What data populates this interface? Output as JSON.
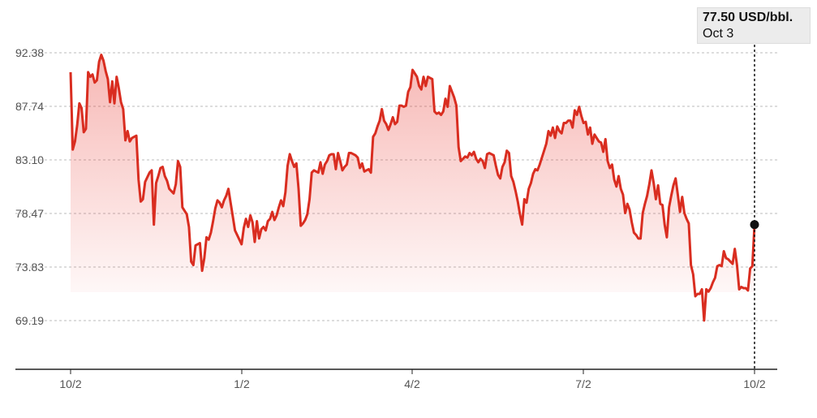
{
  "chart_data": {
    "type": "line",
    "title": "",
    "xlabel": "",
    "ylabel": "",
    "x_ticks": [
      "10/2",
      "1/2",
      "4/2",
      "7/2",
      "10/2"
    ],
    "y_ticks": [
      "92.38",
      "87.74",
      "83.10",
      "78.47",
      "73.83",
      "69.19"
    ],
    "ylim": [
      64.55,
      94.5
    ],
    "grid": "horizontal dashed",
    "series": [
      {
        "name": "",
        "color": "#d92d20",
        "values": [
          90.7,
          84.0,
          84.7,
          86.1,
          88.0,
          87.6,
          85.5,
          85.8,
          90.7,
          90.3,
          90.5,
          89.8,
          90.0,
          91.6,
          92.2,
          91.7,
          90.8,
          90.1,
          88.1,
          89.9,
          88.0,
          90.3,
          89.3,
          88.1,
          87.5,
          84.8,
          85.6,
          84.7,
          85.0,
          85.1,
          85.2,
          81.4,
          79.5,
          79.7,
          81.2,
          81.6,
          82.0,
          82.2,
          77.5,
          81.1,
          81.7,
          82.4,
          82.5,
          81.7,
          81.3,
          80.6,
          80.4,
          80.2,
          81.0,
          83.0,
          82.5,
          79.0,
          78.7,
          78.4,
          77.3,
          74.3,
          74.0,
          75.7,
          75.8,
          75.9,
          73.5,
          74.6,
          76.4,
          76.2,
          76.8,
          77.8,
          78.9,
          79.6,
          79.4,
          79.0,
          79.6,
          80.0,
          80.6,
          79.4,
          78.2,
          77.0,
          76.6,
          76.2,
          75.8,
          77.2,
          78.0,
          77.3,
          78.3,
          77.7,
          76.0,
          77.8,
          76.3,
          77.1,
          77.3,
          77.0,
          77.8,
          78.0,
          78.6,
          77.9,
          78.3,
          79.0,
          79.6,
          79.1,
          80.3,
          82.6,
          83.6,
          83.0,
          82.5,
          82.8,
          80.6,
          77.4,
          77.6,
          77.9,
          78.4,
          79.7,
          82.0,
          82.2,
          82.1,
          82.0,
          82.9,
          81.9,
          82.7,
          83.0,
          83.5,
          83.6,
          83.6,
          82.3,
          83.7,
          83.0,
          82.2,
          82.5,
          82.7,
          83.7,
          83.7,
          83.6,
          83.5,
          83.3,
          82.4,
          82.8,
          82.1,
          82.2,
          82.3,
          82.0,
          85.1,
          85.4,
          86.0,
          86.5,
          87.5,
          86.5,
          86.2,
          85.7,
          86.2,
          86.8,
          86.2,
          86.4,
          87.8,
          87.8,
          87.7,
          87.8,
          89.0,
          89.4,
          90.9,
          90.6,
          90.3,
          89.5,
          89.2,
          90.3,
          89.5,
          90.3,
          90.2,
          90.1,
          87.3,
          87.1,
          87.2,
          87.0,
          87.3,
          88.4,
          87.7,
          89.5,
          89.0,
          88.5,
          87.8,
          84.2,
          83.0,
          83.2,
          83.4,
          83.3,
          83.7,
          83.5,
          83.8,
          83.2,
          82.9,
          83.2,
          83.0,
          82.4,
          83.6,
          83.7,
          83.6,
          83.5,
          82.6,
          81.8,
          81.5,
          82.5,
          82.9,
          83.9,
          83.7,
          81.7,
          81.2,
          80.4,
          79.5,
          78.4,
          77.5,
          79.7,
          79.4,
          80.6,
          81.1,
          81.9,
          82.3,
          82.2,
          82.7,
          83.3,
          83.9,
          84.5,
          85.6,
          85.2,
          85.9,
          85.0,
          86.0,
          85.6,
          85.4,
          86.3,
          86.3,
          86.5,
          86.5,
          85.9,
          87.4,
          87.0,
          87.7,
          86.9,
          86.3,
          86.4,
          85.3,
          85.9,
          84.5,
          85.3,
          85.0,
          84.7,
          84.6,
          83.8,
          84.9,
          83.0,
          82.4,
          82.7,
          81.4,
          80.8,
          81.7,
          80.6,
          80.1,
          78.5,
          79.3,
          78.8,
          77.7,
          76.8,
          76.6,
          76.3,
          76.3,
          78.5,
          79.3,
          80.0,
          81.0,
          82.2,
          81.1,
          79.7,
          80.9,
          79.3,
          79.2,
          77.5,
          76.4,
          79.0,
          80.0,
          80.9,
          81.5,
          80.1,
          78.6,
          79.9,
          78.5,
          78.0,
          77.6,
          74.0,
          73.2,
          71.3,
          71.5,
          71.5,
          71.9,
          69.2,
          71.9,
          71.7,
          72.0,
          72.5,
          72.9,
          73.9,
          74.0,
          73.9,
          75.2,
          74.6,
          74.5,
          74.3,
          74.1,
          75.4,
          74.0,
          71.9,
          72.1,
          72.0,
          72.0,
          71.8,
          73.7,
          73.9,
          77.5
        ]
      }
    ]
  },
  "tooltip": {
    "value": "77.50 USD/bbl.",
    "date": "Oct 3"
  },
  "colors": {
    "line": "#d92d20",
    "grid": "#bbbbbb",
    "axis": "#222222",
    "tick_text": "#555555",
    "tooltip_bg": "#ececec"
  }
}
